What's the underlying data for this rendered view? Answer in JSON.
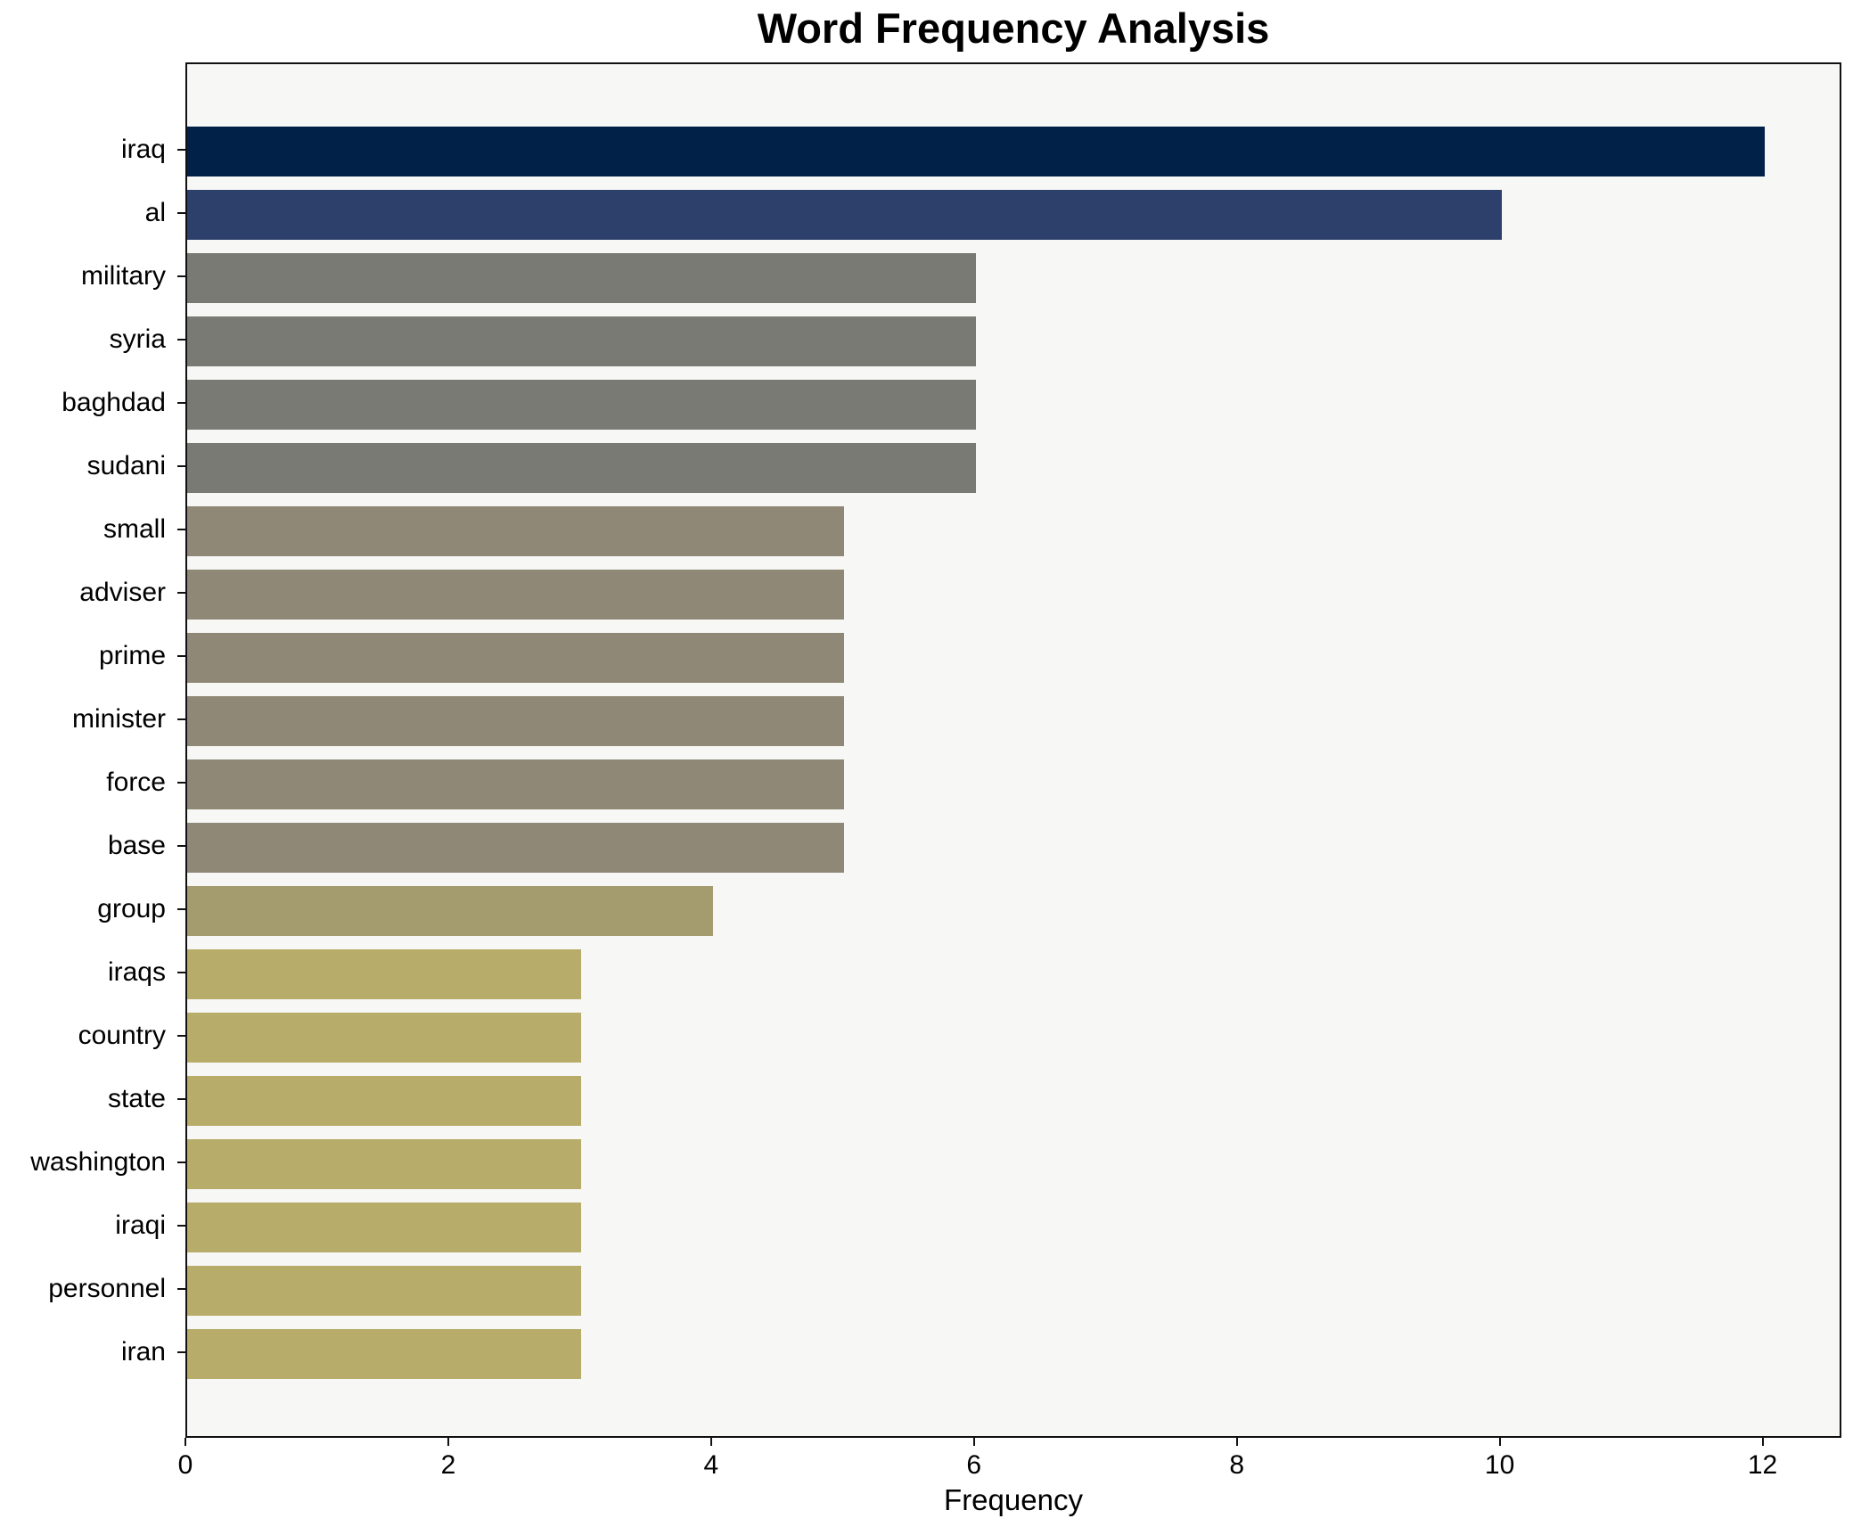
{
  "title": "Word Frequency Analysis",
  "chart_data": {
    "type": "bar",
    "orientation": "horizontal",
    "title": "Word Frequency Analysis",
    "xlabel": "Frequency",
    "ylabel": "",
    "categories": [
      "iraq",
      "al",
      "military",
      "syria",
      "baghdad",
      "sudani",
      "small",
      "adviser",
      "prime",
      "minister",
      "force",
      "base",
      "group",
      "iraqs",
      "country",
      "state",
      "washington",
      "iraqi",
      "personnel",
      "iran"
    ],
    "values": [
      12,
      10,
      6,
      6,
      6,
      6,
      5,
      5,
      5,
      5,
      5,
      5,
      4,
      3,
      3,
      3,
      3,
      3,
      3,
      3
    ],
    "bar_colors": [
      "#022149",
      "#2d3f6b",
      "#7a7a74",
      "#7a7a74",
      "#7a7a74",
      "#7a7a74",
      "#8f8876",
      "#8f8876",
      "#8f8876",
      "#8f8876",
      "#8f8876",
      "#8f8876",
      "#a49c6e",
      "#b8ac6a",
      "#b8ac6a",
      "#b8ac6a",
      "#b8ac6a",
      "#b8ac6a",
      "#b8ac6a",
      "#b8ac6a"
    ],
    "xlim": [
      0,
      12.6
    ],
    "xticks": [
      0,
      2,
      4,
      6,
      8,
      10,
      12
    ],
    "grid": false,
    "legend": null,
    "plot_background": "#f7f7f5",
    "figure_background": "#ffffff",
    "spine_color": "#111111"
  }
}
